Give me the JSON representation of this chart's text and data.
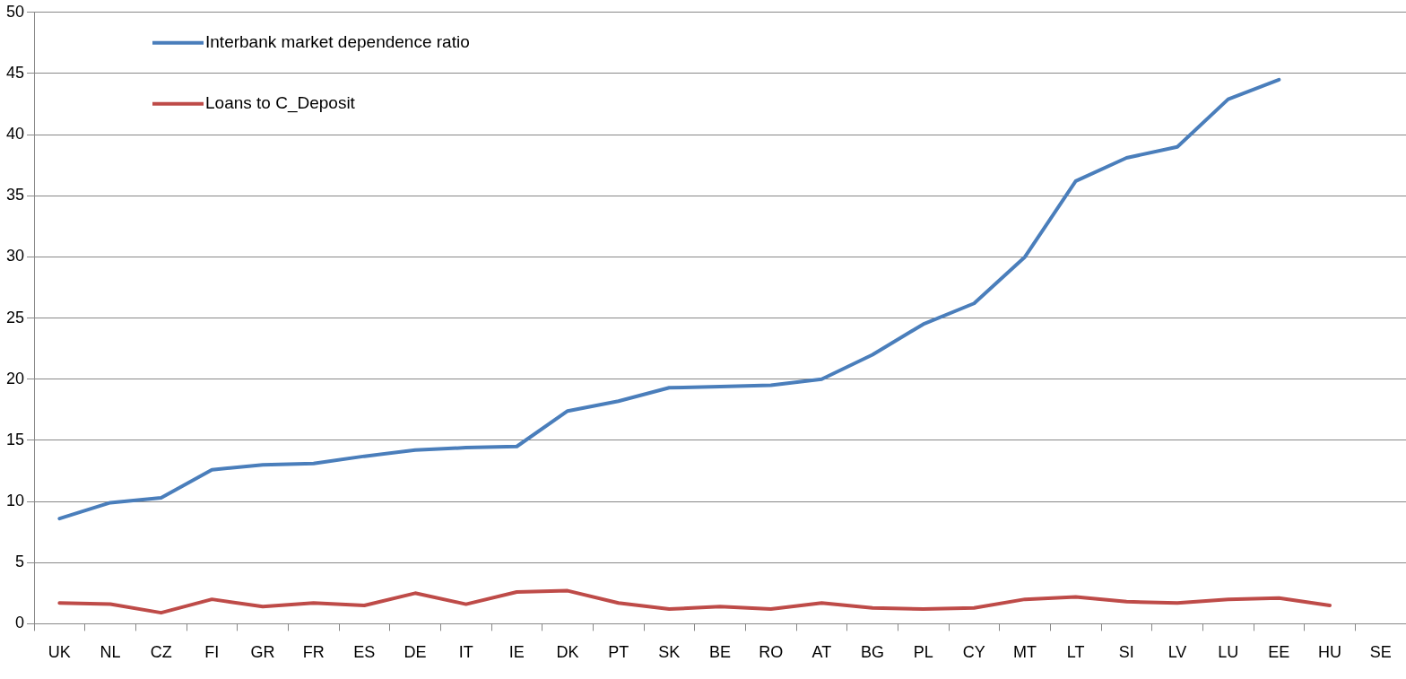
{
  "chart_data": {
    "type": "line",
    "categories": [
      "UK",
      "NL",
      "CZ",
      "FI",
      "GR",
      "FR",
      "ES",
      "DE",
      "IT",
      "IE",
      "DK",
      "PT",
      "SK",
      "BE",
      "RO",
      "AT",
      "BG",
      "PL",
      "CY",
      "MT",
      "LT",
      "SI",
      "LV",
      "LU",
      "EE",
      "HU",
      "SE"
    ],
    "series": [
      {
        "name": "Interbank market dependence ratio",
        "color": "#4a7ebb",
        "values": [
          8.6,
          9.9,
          10.3,
          12.6,
          13.0,
          13.1,
          13.7,
          14.2,
          14.4,
          14.5,
          17.4,
          18.2,
          19.3,
          19.4,
          19.5,
          20.0,
          22.0,
          24.5,
          26.2,
          30.0,
          36.2,
          38.1,
          39.0,
          42.9,
          44.5,
          null,
          null
        ]
      },
      {
        "name": "Loans to C_Deposit",
        "color": "#be4b48",
        "values": [
          1.7,
          1.6,
          0.9,
          2.0,
          1.4,
          1.7,
          1.5,
          2.5,
          1.6,
          2.6,
          2.7,
          1.7,
          1.2,
          1.4,
          1.2,
          1.7,
          1.3,
          1.2,
          1.3,
          2.0,
          2.2,
          1.8,
          1.7,
          2.0,
          2.1,
          1.5,
          null
        ]
      }
    ],
    "ylim": [
      0,
      50
    ],
    "yticks": [
      0,
      5,
      10,
      15,
      20,
      25,
      30,
      35,
      40,
      45,
      50
    ],
    "grid": "y",
    "legend": "top left",
    "marker": "none",
    "line_style": "solid"
  }
}
